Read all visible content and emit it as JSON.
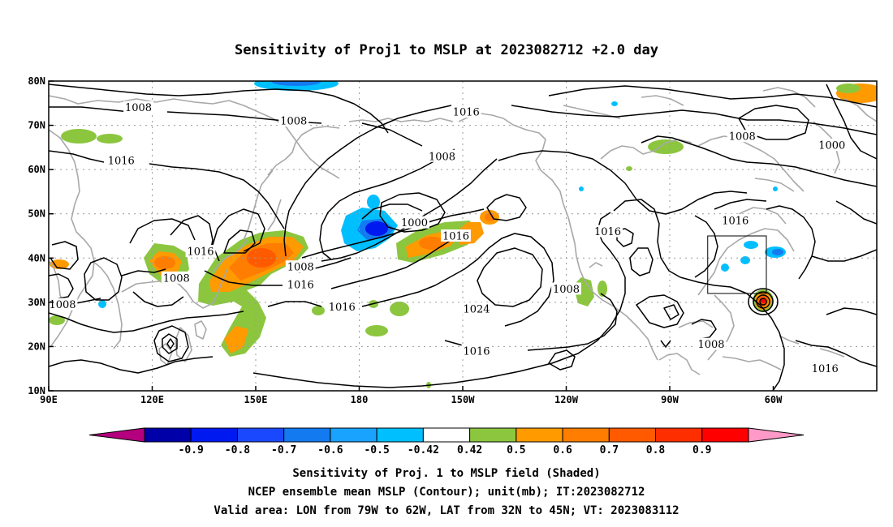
{
  "title": "Sensitivity of Proj1 to MSLP at 2023082712 +2.0 day",
  "map": {
    "lon_min": 90,
    "lon_max": 330,
    "lat_min": 10,
    "lat_max": 80,
    "lon_ticks": [
      {
        "lon": 90,
        "label": "90E"
      },
      {
        "lon": 120,
        "label": "120E"
      },
      {
        "lon": 150,
        "label": "150E"
      },
      {
        "lon": 180,
        "label": "180"
      },
      {
        "lon": 210,
        "label": "150W"
      },
      {
        "lon": 240,
        "label": "120W"
      },
      {
        "lon": 270,
        "label": "90W"
      },
      {
        "lon": 300,
        "label": "60W"
      }
    ],
    "lat_ticks": [
      {
        "lat": 10,
        "label": "10N"
      },
      {
        "lat": 20,
        "label": "20N"
      },
      {
        "lat": 30,
        "label": "30N"
      },
      {
        "lat": 40,
        "label": "40N"
      },
      {
        "lat": 50,
        "label": "50N"
      },
      {
        "lat": 60,
        "label": "60N"
      },
      {
        "lat": 70,
        "label": "70N"
      },
      {
        "lat": 80,
        "label": "80N"
      }
    ],
    "contour_labels": [
      {
        "text": "1008",
        "lon": 116,
        "lat": 74
      },
      {
        "text": "1008",
        "lon": 161,
        "lat": 71
      },
      {
        "text": "1016",
        "lon": 211,
        "lat": 73
      },
      {
        "text": "1008",
        "lon": 291,
        "lat": 67.5
      },
      {
        "text": "1000",
        "lon": 317,
        "lat": 65.5
      },
      {
        "text": "1016",
        "lon": 111,
        "lat": 62
      },
      {
        "text": "1008",
        "lon": 204,
        "lat": 63
      },
      {
        "text": "1000",
        "lon": 196,
        "lat": 48
      },
      {
        "text": "1016",
        "lon": 252,
        "lat": 46
      },
      {
        "text": "1016",
        "lon": 289,
        "lat": 48.5
      },
      {
        "text": "1016",
        "lon": 208,
        "lat": 45
      },
      {
        "text": "1016",
        "lon": 134,
        "lat": 41.5
      },
      {
        "text": "1008",
        "lon": 163,
        "lat": 38
      },
      {
        "text": "1008",
        "lon": 127,
        "lat": 35.5
      },
      {
        "text": "1016",
        "lon": 163,
        "lat": 34
      },
      {
        "text": "1008",
        "lon": 240,
        "lat": 33
      },
      {
        "text": "1008",
        "lon": 94,
        "lat": 29.5
      },
      {
        "text": "1016",
        "lon": 175,
        "lat": 29
      },
      {
        "text": "1024",
        "lon": 214,
        "lat": 28.5
      },
      {
        "text": "1008",
        "lon": 282,
        "lat": 20.5
      },
      {
        "text": "1016",
        "lon": 214,
        "lat": 19
      },
      {
        "text": "1016",
        "lon": 315,
        "lat": 15
      }
    ],
    "sensitivity_colors": {
      "neg_lt_-0.9": "#b4007e",
      "neg_-0.9": "#0000a8",
      "neg_-0.8": "#0019f0",
      "neg_-0.7": "#1a48ff",
      "neg_-0.6": "#147af0",
      "neg_-0.5": "#00bfff",
      "zero": "#ffffff",
      "pos_0.42": "#8cc63f",
      "pos_0.5": "#ff9a00",
      "pos_0.6": "#ff7d00",
      "pos_0.7": "#ff5a00",
      "pos_0.8": "#ff2e00",
      "pos_0.9": "#ff0000",
      "pos_gt_0.9": "#ff99c8"
    },
    "valid_box": {
      "lon_min": 281,
      "lon_max": 298,
      "lat_min": 32,
      "lat_max": 45
    }
  },
  "colorbar": {
    "colors": [
      "#b4007e",
      "#0000a8",
      "#0019f0",
      "#1a48ff",
      "#147af0",
      "#1aa2ff",
      "#00bfff",
      "#ffffff",
      "#8cc63f",
      "#ff9a00",
      "#ff7d00",
      "#ff5a00",
      "#ff2e00",
      "#ff0000",
      "#ff99c8"
    ],
    "ticks": [
      "-0.9",
      "-0.8",
      "-0.7",
      "-0.6",
      "-0.5",
      "-0.42",
      "0.42",
      "0.5",
      "0.6",
      "0.7",
      "0.8",
      "0.9"
    ]
  },
  "captions": [
    "Sensitivity of Proj. 1 to MSLP field (Shaded)",
    "NCEP ensemble mean MSLP (Contour); unit(mb); IT:2023082712",
    "Valid area: LON from 79W to 62W, LAT from 32N to 45N; VT: 2023083112"
  ]
}
